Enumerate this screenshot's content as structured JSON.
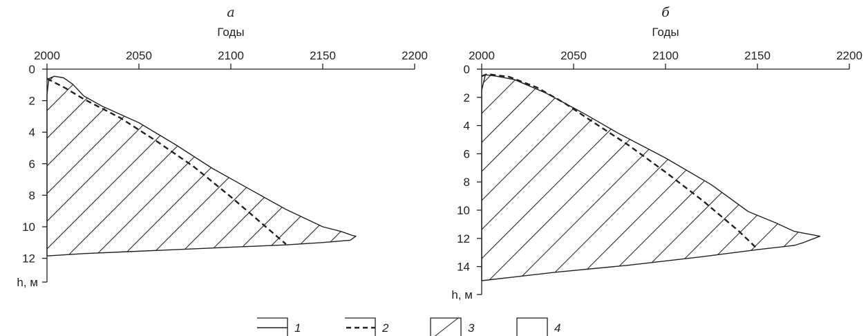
{
  "chart_data": [
    {
      "type": "area",
      "panel_label": "а",
      "xlabel": "Годы",
      "ylabel": "h, м",
      "xlim": [
        2000,
        2200
      ],
      "ylim": [
        0,
        14.5
      ],
      "x_ticks": [
        2000,
        2050,
        2100,
        2150,
        2200
      ],
      "y_ticks": [
        0,
        2,
        4,
        6,
        8,
        10,
        12
      ],
      "y_tick_labels": [
        "0",
        "2",
        "4",
        "6",
        "8",
        "10",
        "12"
      ],
      "x_axis_position": "top",
      "y_inverted": true,
      "series": [
        {
          "name": "1",
          "style": "solid",
          "x": [
            2000,
            2001,
            2004,
            2009,
            2014,
            2020,
            2030,
            2050,
            2070,
            2090,
            2110,
            2130,
            2150,
            2160,
            2166,
            2168,
            2165,
            2150,
            2130,
            2100,
            2070,
            2040,
            2020,
            2000
          ],
          "y": [
            1.6,
            0.6,
            0.45,
            0.55,
            0.95,
            1.7,
            2.35,
            3.4,
            4.8,
            6.3,
            7.6,
            8.9,
            10.0,
            10.3,
            10.55,
            10.6,
            10.85,
            11.0,
            11.15,
            11.3,
            11.45,
            11.6,
            11.7,
            11.85
          ]
        },
        {
          "name": "2",
          "style": "dashed",
          "x": [
            2000,
            2010,
            2020,
            2040,
            2060,
            2080,
            2100,
            2120,
            2130
          ],
          "y": [
            0.6,
            1.2,
            1.9,
            3.1,
            4.6,
            6.2,
            8.1,
            10.1,
            11.1
          ]
        }
      ],
      "hatched_area": "3",
      "clear_area": "4"
    },
    {
      "type": "area",
      "panel_label": "б",
      "xlabel": "Годы",
      "ylabel": "h, м",
      "xlim": [
        2000,
        2200
      ],
      "ylim": [
        0,
        15.7
      ],
      "x_ticks": [
        2000,
        2050,
        2100,
        2150,
        2200
      ],
      "y_ticks": [
        0,
        2,
        4,
        6,
        8,
        10,
        12,
        14
      ],
      "y_tick_labels": [
        "0",
        "2",
        "4",
        "6",
        "8",
        "10",
        "12",
        "14"
      ],
      "x_axis_position": "top",
      "y_inverted": true,
      "series": [
        {
          "name": "1",
          "style": "solid",
          "x": [
            2000,
            2002,
            2008,
            2018,
            2035,
            2055,
            2075,
            2100,
            2125,
            2145,
            2160,
            2170,
            2176,
            2184,
            2175,
            2170,
            2150,
            2120,
            2080,
            2040,
            2020,
            2000
          ],
          "y": [
            1.5,
            0.4,
            0.5,
            0.75,
            1.7,
            3.1,
            4.6,
            6.3,
            8.2,
            10.1,
            10.9,
            11.5,
            11.65,
            11.85,
            12.3,
            12.5,
            12.8,
            13.3,
            13.9,
            14.4,
            14.7,
            15.0
          ]
        },
        {
          "name": "2",
          "style": "dashed",
          "x": [
            2000,
            2003,
            2015,
            2030,
            2045,
            2060,
            2080,
            2100,
            2120,
            2140,
            2150
          ],
          "y": [
            0.5,
            0.35,
            0.55,
            1.3,
            2.4,
            3.7,
            5.4,
            7.3,
            9.3,
            11.5,
            12.75
          ]
        }
      ],
      "hatched_area": "3",
      "clear_area": "4"
    }
  ],
  "legend": [
    {
      "label": "1",
      "kind": "solid-line"
    },
    {
      "label": "2",
      "kind": "dashed-line"
    },
    {
      "label": "3",
      "kind": "hatched-box"
    },
    {
      "label": "4",
      "kind": "empty-box"
    }
  ],
  "colors": {
    "ink": "#231f20",
    "background": "#ffffff"
  }
}
